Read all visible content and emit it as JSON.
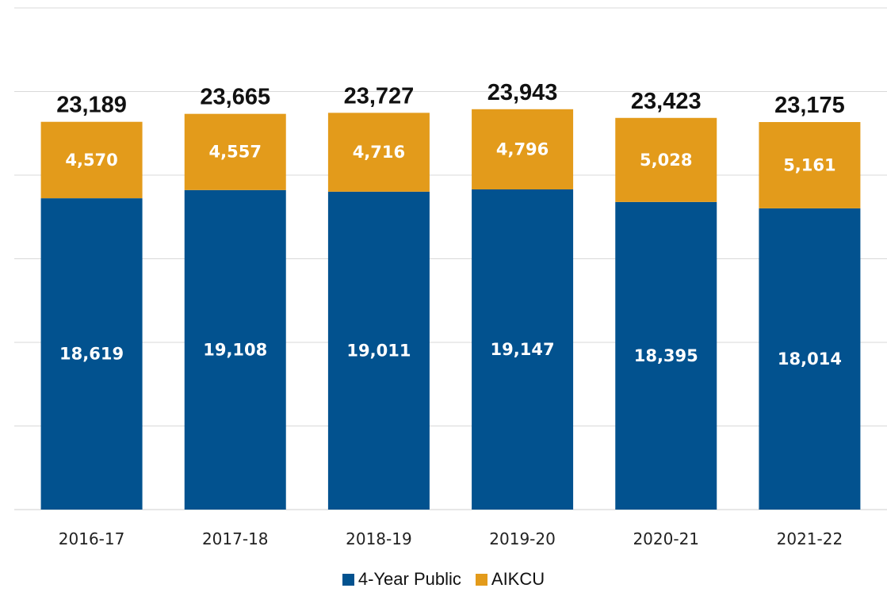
{
  "chart_data": {
    "type": "bar",
    "stacked": true,
    "categories": [
      "2016-17",
      "2017-18",
      "2018-19",
      "2019-20",
      "2020-21",
      "2021-22"
    ],
    "series": [
      {
        "name": "4-Year Public",
        "color": "#02528f",
        "values": [
          18619,
          19108,
          19011,
          19147,
          18395,
          18014
        ],
        "labels": [
          "18,619",
          "19,108",
          "19,011",
          "19,147",
          "18,395",
          "18,014"
        ]
      },
      {
        "name": "AIKCU",
        "color": "#e39b1b",
        "values": [
          4570,
          4557,
          4716,
          4796,
          5028,
          5161
        ],
        "labels": [
          "4,570",
          "4,557",
          "4,716",
          "4,796",
          "5,028",
          "5,161"
        ]
      }
    ],
    "totals": [
      23189,
      23665,
      23727,
      23943,
      23423,
      23175
    ],
    "total_labels": [
      "23,189",
      "23,665",
      "23,727",
      "23,943",
      "23,423",
      "23,175"
    ],
    "ylim": [
      0,
      30000
    ],
    "grid": true,
    "legend_position": "bottom",
    "title": "",
    "xlabel": "",
    "ylabel": ""
  }
}
